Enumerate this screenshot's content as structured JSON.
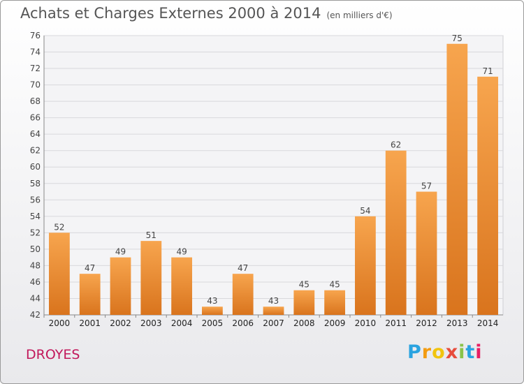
{
  "header": {
    "title": "Achats et Charges Externes 2000 à 2014",
    "subtitle": "(en milliers d'€)"
  },
  "footer": {
    "place": "DROYES",
    "logo_letters": [
      "P",
      "r",
      "o",
      "x",
      "i",
      "t",
      "i"
    ],
    "logo_colors": [
      "#2aa3e0",
      "#f39c12",
      "#f1c40f",
      "#e74c3c",
      "#8bc34a",
      "#2aa3e0",
      "#e91e63"
    ]
  },
  "chart_data": {
    "type": "bar",
    "title": "Achats et Charges Externes 2000 à 2014",
    "subtitle": "(en milliers d'€)",
    "xlabel": "",
    "ylabel": "",
    "categories": [
      "2000",
      "2001",
      "2002",
      "2003",
      "2004",
      "2005",
      "2006",
      "2007",
      "2008",
      "2009",
      "2010",
      "2011",
      "2012",
      "2013",
      "2014"
    ],
    "values": [
      52,
      47,
      49,
      51,
      49,
      43,
      47,
      43,
      45,
      45,
      54,
      62,
      57,
      75,
      71
    ],
    "ylim": [
      42,
      76
    ],
    "yticks": [
      42,
      44,
      46,
      48,
      50,
      52,
      54,
      56,
      58,
      60,
      62,
      64,
      66,
      68,
      70,
      72,
      74,
      76
    ],
    "grid": true,
    "bar_color_light": "#f7a54e",
    "bar_color_dark": "#d9741d"
  }
}
